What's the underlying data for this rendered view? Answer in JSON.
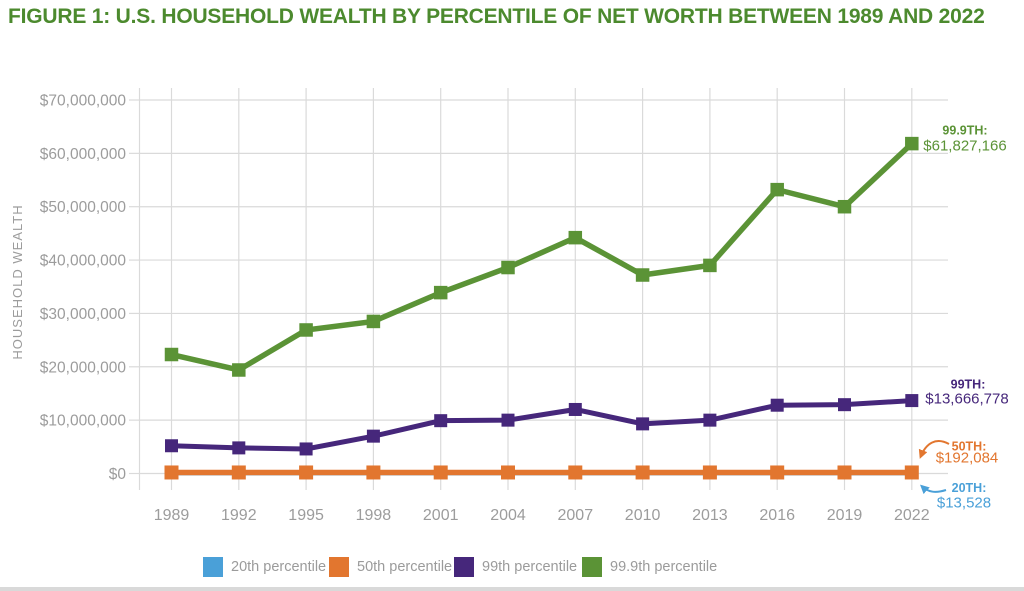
{
  "figure": {
    "title": "FIGURE 1: U.S. HOUSEHOLD WEALTH BY PERCENTILE OF NET WORTH BETWEEN 1989 AND 2022"
  },
  "colors": {
    "title_green": "#4C8A2E",
    "axis_text": "#9C9C9C",
    "gridline": "#DADADA"
  },
  "chart_data": {
    "type": "line",
    "title": "U.S. Household Wealth by Percentile of Net Worth Between 1989 and 2022",
    "xlabel": "",
    "ylabel": "HOUSEHOLD WEALTH",
    "ylim": [
      0,
      70000000
    ],
    "ytick_step": 10000000,
    "ytick_labels": [
      "$0",
      "$10,000,000",
      "$20,000,000",
      "$30,000,000",
      "$40,000,000",
      "$50,000,000",
      "$60,000,000",
      "$70,000,000"
    ],
    "categories": [
      "1989",
      "1992",
      "1995",
      "1998",
      "2001",
      "2004",
      "2007",
      "2010",
      "2013",
      "2016",
      "2019",
      "2022"
    ],
    "grid": true,
    "legend_position": "bottom",
    "marker": "square",
    "series": [
      {
        "name": "20th percentile",
        "color": "#4AA0D8",
        "values": [
          13528,
          13528,
          13528,
          13528,
          13528,
          13528,
          13528,
          13528,
          13528,
          13528,
          13528,
          13528
        ]
      },
      {
        "name": "50th percentile",
        "color": "#E2762F",
        "values": [
          192084,
          192084,
          192084,
          192084,
          192084,
          192084,
          192084,
          192084,
          192084,
          192084,
          192084,
          192084
        ]
      },
      {
        "name": "99th percentile",
        "color": "#46277B",
        "values": [
          5200000,
          4800000,
          4600000,
          7000000,
          9900000,
          10000000,
          12000000,
          9300000,
          10000000,
          12800000,
          12900000,
          13666778
        ]
      },
      {
        "name": "99.9th percentile",
        "color": "#5B9336",
        "values": [
          22300000,
          19400000,
          26900000,
          28500000,
          33900000,
          38600000,
          44200000,
          37200000,
          39000000,
          53200000,
          50000000,
          61827166
        ]
      }
    ]
  },
  "annotations": [
    {
      "label": "99.9TH:",
      "value": "$61,827,166",
      "series": "99.9th percentile",
      "color": "#5B9336"
    },
    {
      "label": "99TH:",
      "value": "$13,666,778",
      "series": "99th percentile",
      "color": "#46277B"
    },
    {
      "label": "50TH:",
      "value": "$192,084",
      "series": "50th percentile",
      "color": "#E2762F"
    },
    {
      "label": "20TH:",
      "value": "$13,528",
      "series": "20th percentile",
      "color": "#4AA0D8"
    }
  ]
}
